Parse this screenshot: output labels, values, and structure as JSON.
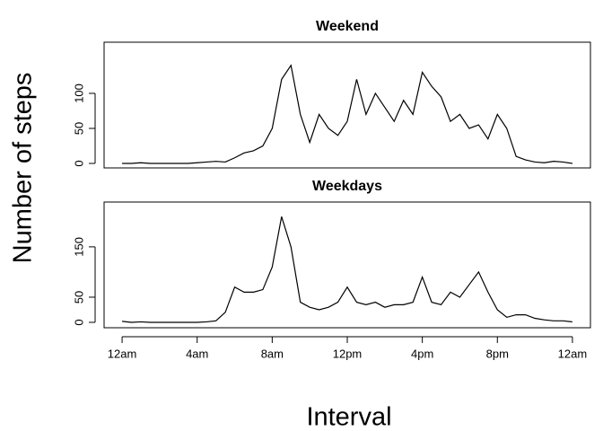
{
  "chart_data": [
    {
      "type": "line",
      "title": "Weekend",
      "ylabel": "Number of steps",
      "color": "#000000",
      "x": [
        0,
        0.5,
        1,
        1.5,
        2,
        2.5,
        3,
        3.5,
        4,
        4.5,
        5,
        5.5,
        6,
        6.5,
        7,
        7.5,
        8,
        8.5,
        9,
        9.5,
        10,
        10.5,
        11,
        11.5,
        12,
        12.5,
        13,
        13.5,
        14,
        14.5,
        15,
        15.5,
        16,
        16.5,
        17,
        17.5,
        18,
        18.5,
        19,
        19.5,
        20,
        20.5,
        21,
        21.5,
        22,
        22.5,
        23,
        23.5,
        24
      ],
      "values": [
        0,
        0,
        1,
        0,
        0,
        0,
        0,
        0,
        1,
        2,
        3,
        2,
        8,
        15,
        18,
        25,
        50,
        120,
        140,
        70,
        30,
        70,
        50,
        40,
        60,
        120,
        70,
        100,
        80,
        60,
        90,
        70,
        130,
        110,
        95,
        60,
        70,
        50,
        55,
        35,
        70,
        50,
        10,
        5,
        2,
        1,
        3,
        2,
        0
      ],
      "xlim": [
        -0.96,
        24.96
      ],
      "ylim": [
        -6.4,
        173
      ],
      "yticks": [
        0,
        50,
        100
      ]
    },
    {
      "type": "line",
      "title": "Weekdays",
      "xlabel": "Interval",
      "color": "#000000",
      "x": [
        0,
        0.5,
        1,
        1.5,
        2,
        2.5,
        3,
        3.5,
        4,
        4.5,
        5,
        5.5,
        6,
        6.5,
        7,
        7.5,
        8,
        8.5,
        9,
        9.5,
        10,
        10.5,
        11,
        11.5,
        12,
        12.5,
        13,
        13.5,
        14,
        14.5,
        15,
        15.5,
        16,
        16.5,
        17,
        17.5,
        18,
        18.5,
        19,
        19.5,
        20,
        20.5,
        21,
        21.5,
        22,
        22.5,
        23,
        23.5,
        24
      ],
      "values": [
        2,
        0,
        1,
        0,
        0,
        0,
        0,
        0,
        0,
        1,
        3,
        20,
        70,
        60,
        60,
        65,
        110,
        210,
        150,
        40,
        30,
        25,
        30,
        40,
        70,
        40,
        35,
        40,
        30,
        35,
        35,
        40,
        90,
        40,
        35,
        60,
        50,
        75,
        100,
        60,
        25,
        10,
        15,
        15,
        8,
        5,
        3,
        3,
        1
      ],
      "xlim": [
        -0.96,
        24.96
      ],
      "ylim": [
        -10.7,
        239
      ],
      "yticks": [
        0,
        50,
        150
      ],
      "xticks": [
        {
          "value": 0,
          "label": "12am"
        },
        {
          "value": 4,
          "label": "4am"
        },
        {
          "value": 8,
          "label": "8am"
        },
        {
          "value": 12,
          "label": "12pm"
        },
        {
          "value": 16,
          "label": "4pm"
        },
        {
          "value": 20,
          "label": "8pm"
        },
        {
          "value": 24,
          "label": "12am"
        }
      ]
    }
  ]
}
